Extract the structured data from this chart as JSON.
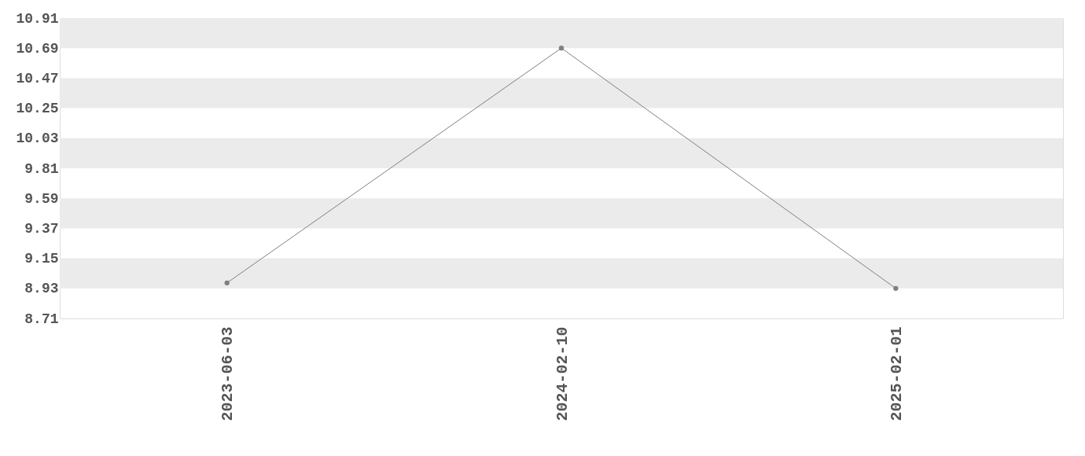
{
  "chart_data": {
    "type": "line",
    "categories": [
      "2023-06-03",
      "2024-02-10",
      "2025-02-01"
    ],
    "series": [
      {
        "color": "#808080",
        "values": [
          8.97,
          10.69,
          8.93
        ]
      }
    ],
    "ylim": [
      8.71,
      10.91
    ],
    "yticks": [
      8.71,
      8.93,
      9.15,
      9.37,
      9.59,
      9.81,
      10.03,
      10.25,
      10.47,
      10.69,
      10.91
    ],
    "bands": [
      {
        "axis": "y",
        "from": 8.93,
        "to": 9.15,
        "color": "#ebebeb"
      },
      {
        "axis": "y",
        "from": 9.37,
        "to": 9.59,
        "color": "#ebebeb"
      },
      {
        "axis": "y",
        "from": 9.81,
        "to": 10.03,
        "color": "#ebebeb"
      },
      {
        "axis": "y",
        "from": 10.25,
        "to": 10.47,
        "color": "#ebebeb"
      },
      {
        "axis": "y",
        "from": 10.69,
        "to": 10.91,
        "color": "#ebebeb"
      }
    ],
    "marker": "circle",
    "line_style": "solid",
    "grid": false
  }
}
